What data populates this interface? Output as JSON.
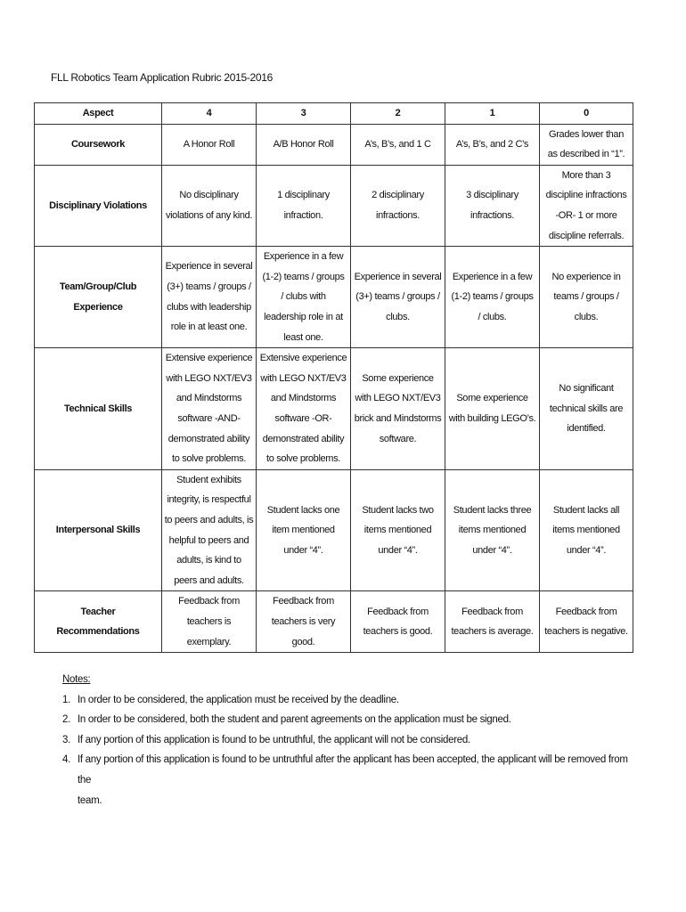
{
  "title": "FLL Robotics Team Application Rubric  2015-2016",
  "table": {
    "headers": [
      "Aspect",
      "4",
      "3",
      "2",
      "1",
      "0"
    ],
    "rows": [
      {
        "aspect": [
          "Coursework"
        ],
        "cells": [
          [
            "A Honor Roll"
          ],
          [
            "A/B Honor Roll"
          ],
          [
            "A’s, B’s, and 1 C"
          ],
          [
            "A’s, B’s, and 2 C’s"
          ],
          [
            "Grades lower than",
            "as described in “1”."
          ]
        ]
      },
      {
        "aspect": [
          "Disciplinary Violations"
        ],
        "cells": [
          [
            "No disciplinary",
            "violations of any kind."
          ],
          [
            "1 disciplinary",
            "infraction."
          ],
          [
            "2 disciplinary",
            "infractions."
          ],
          [
            "3 disciplinary",
            "infractions."
          ],
          [
            "More than 3",
            "discipline infractions",
            "-OR- 1 or more",
            "discipline referrals."
          ]
        ]
      },
      {
        "aspect": [
          "Team/Group/Club",
          "Experience"
        ],
        "cells": [
          [
            "Experience in several",
            "(3+) teams / groups /",
            "clubs with leadership",
            "role in at least one."
          ],
          [
            "Experience in a few",
            "(1-2) teams / groups",
            "/ clubs with",
            "leadership role in at",
            "least one."
          ],
          [
            "Experience in several",
            "(3+) teams / groups /",
            "clubs."
          ],
          [
            "Experience in a few",
            "(1-2) teams / groups",
            "/ clubs."
          ],
          [
            "No experience in",
            "teams / groups /",
            "clubs."
          ]
        ]
      },
      {
        "aspect": [
          "Technical Skills"
        ],
        "cells": [
          [
            "Extensive experience",
            "with LEGO NXT/EV3",
            "and Mindstorms",
            "software -AND-",
            "demonstrated ability",
            "to solve problems."
          ],
          [
            "Extensive experience",
            "with LEGO NXT/EV3",
            "and Mindstorms",
            "software -OR-",
            "demonstrated ability",
            "to solve problems."
          ],
          [
            "Some experience",
            "with LEGO NXT/EV3",
            "brick and Mindstorms",
            "software."
          ],
          [
            "Some experience",
            "with building LEGO’s."
          ],
          [
            "No significant",
            "technical skills are",
            "identified."
          ]
        ]
      },
      {
        "aspect": [
          "Interpersonal Skills"
        ],
        "cells": [
          [
            "Student exhibits",
            "integrity, is respectful",
            "to peers and adults, is",
            "helpful to peers and",
            "adults, is kind to",
            "peers and adults."
          ],
          [
            "Student lacks one",
            "item mentioned",
            "under “4”."
          ],
          [
            "Student lacks two",
            "items mentioned",
            "under “4”."
          ],
          [
            "Student lacks three",
            "items mentioned",
            "under “4”."
          ],
          [
            "Student lacks all",
            "items mentioned",
            "under “4”."
          ]
        ]
      },
      {
        "aspect": [
          "Teacher",
          "Recommendations"
        ],
        "cells": [
          [
            "Feedback from",
            "teachers is",
            "exemplary."
          ],
          [
            "Feedback from",
            "teachers is very",
            "good."
          ],
          [
            "Feedback from",
            "teachers is good."
          ],
          [
            "Feedback from",
            "teachers is average."
          ],
          [
            "Feedback from",
            "teachers is negative."
          ]
        ]
      }
    ]
  },
  "notes": {
    "heading": "Notes:",
    "items": [
      {
        "num": "1.",
        "lines": [
          "In order to be considered, the application must be received by the deadline."
        ]
      },
      {
        "num": "2.",
        "lines": [
          "In order to be considered, both the student and parent agreements on the application must be signed."
        ]
      },
      {
        "num": "3.",
        "lines": [
          "If any portion of this application is found to be untruthful, the applicant will not be considered."
        ]
      },
      {
        "num": "4.",
        "lines": [
          "If any portion of this application is found to be untruthful after the applicant has been accepted, the applicant will be removed from the",
          "team."
        ]
      }
    ]
  }
}
